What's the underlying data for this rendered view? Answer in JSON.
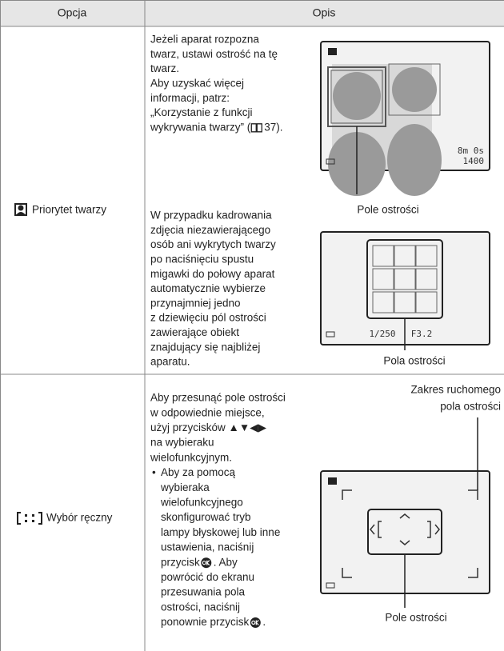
{
  "table": {
    "header": [
      "Opcja",
      "Opis"
    ],
    "rows": [
      {
        "option": "Priorytet twarzy",
        "paragraphs": [
          {
            "lines": [
              "Jeżeli aparat rozpozna",
              "twarz, ustawi ostrość na tę",
              "twarz.",
              "Aby uzyskać więcej",
              "informacji, patrz:",
              "„Korzystanie z funkcji",
              {
                "before": "wykrywania twarzy” (",
                "after": "37)."
              }
            ],
            "caption": [
              "Pole ostrości"
            ],
            "screen_texts": [
              "8m 0s",
              "1400"
            ]
          },
          {
            "lines": [
              "W przypadku kadrowania",
              "zdjęcia niezawierającego",
              "osób ani wykrytych twarzy",
              "po naciśnięciu spustu",
              "migawki do połowy aparat",
              "automatycznie wybierze",
              "przynajmniej jedno",
              "z dziewięciu pól ostrości",
              "zawierające obiekt",
              "znajdujący się najbliżej",
              "aparatu."
            ],
            "caption": [
              "Pola ostrości"
            ],
            "screen_texts": [
              "1/250",
              "F3.2"
            ]
          }
        ]
      },
      {
        "option": "Wybór ręczny",
        "paragraphs": [
          {
            "lines": [
              "Aby przesunąć pole ostrości",
              "w odpowiednie miejsce,",
              "użyj przycisków ▲▼◀▶",
              "na wybieraku",
              "wielofunkcyjnym."
            ],
            "bullet": "•",
            "bullet_lines": [
              "Aby za pomocą",
              "wybieraka",
              "wielofunkcyjnego",
              "skonfigurować tryb",
              "lampy błyskowej lub inne",
              "ustawienia, naciśnij",
              {
                "before": "przycisk ",
                "after": ". Aby"
              },
              "powrócić do ekranu",
              "przesuwania pola",
              "ostrości, naciśnij",
              {
                "before": "ponownie przycisk ",
                "after": "."
              }
            ],
            "caption": [
              "Pole ostrości"
            ],
            "range_caption": [
              "Zakres ruchomego",
              "pola ostrości"
            ]
          }
        ]
      }
    ]
  }
}
